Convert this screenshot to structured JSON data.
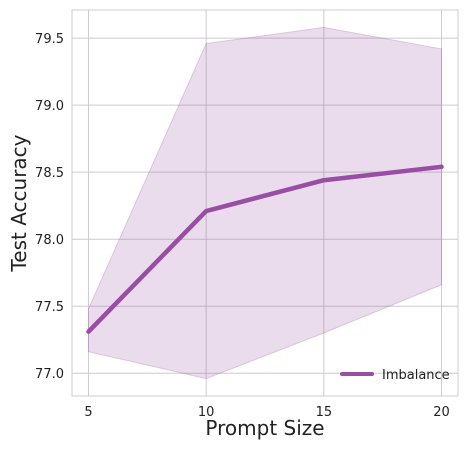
{
  "chart_data": {
    "type": "line",
    "title": "",
    "xlabel": "Prompt Size",
    "ylabel": "Test Accuracy",
    "x": [
      5,
      10,
      15,
      20
    ],
    "xticks": [
      "5",
      "10",
      "15",
      "20"
    ],
    "yticks": [
      "77.0",
      "77.5",
      "78.0",
      "78.5",
      "79.0",
      "79.5"
    ],
    "xlim": [
      4.3,
      20.7
    ],
    "ylim": [
      76.83,
      79.71
    ],
    "grid": true,
    "legend_position": "bottom-right",
    "series": [
      {
        "name": "Imbalance",
        "values": [
          77.31,
          78.21,
          78.44,
          78.54
        ],
        "lower": [
          77.16,
          76.96,
          77.3,
          77.66
        ],
        "upper": [
          77.48,
          79.46,
          79.58,
          79.42
        ],
        "color": "#984ea3",
        "band_color": "#984ea3"
      }
    ]
  }
}
